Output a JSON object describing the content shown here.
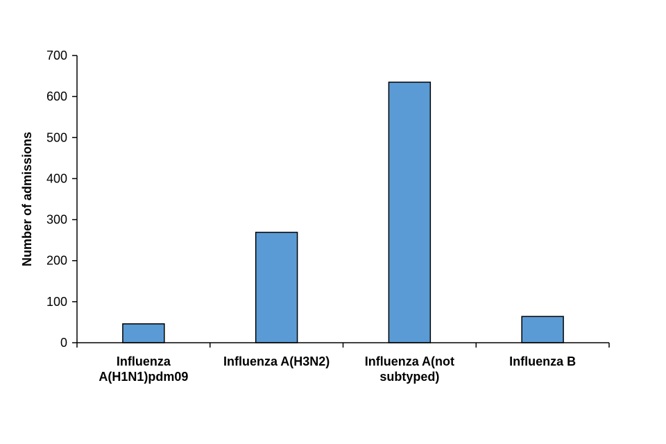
{
  "chart_data": {
    "type": "bar",
    "title": "",
    "xlabel": "",
    "ylabel": "Number of admissions",
    "categories": [
      [
        "Influenza",
        "A(H1N1)pdm09"
      ],
      [
        "Influenza A(H3N2)"
      ],
      [
        "Influenza A(not",
        "subtyped)"
      ],
      [
        "Influenza B"
      ]
    ],
    "values": [
      46,
      269,
      635,
      64
    ],
    "ylim": [
      0,
      700
    ],
    "yticks": [
      0,
      100,
      200,
      300,
      400,
      500,
      600,
      700
    ],
    "grid": false,
    "legend": "none",
    "colors": {
      "bar_fill": "#5b9bd5",
      "bar_stroke": "#000000",
      "axis": "#000000"
    }
  }
}
